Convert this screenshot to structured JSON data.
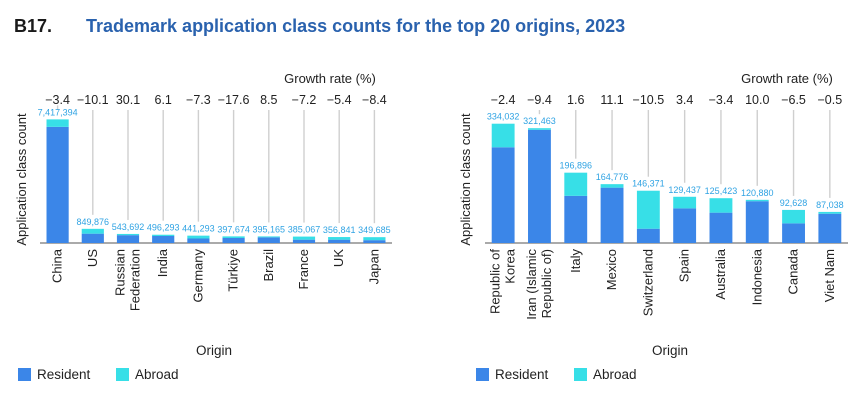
{
  "figure": {
    "id": "B17.",
    "title": "Trademark application class counts for the top 20 origins, 2023"
  },
  "colors": {
    "resident": "#3b86e8",
    "abroad": "#37dfe7",
    "gridline": "#cfcfcf",
    "axis": "#555555"
  },
  "chart_data": [
    {
      "type": "bar",
      "stacked": true,
      "title": "",
      "xlabel": "Origin",
      "ylabel": "Application class count",
      "growth_label": "Growth rate (%)",
      "categories": [
        "China",
        "US",
        "Russian Federation",
        "India",
        "Germany",
        "Türkiye",
        "Brazil",
        "France",
        "UK",
        "Japan"
      ],
      "category_lines": [
        [
          "China"
        ],
        [
          "US"
        ],
        [
          "Russian",
          "Federation"
        ],
        [
          "India"
        ],
        [
          "Germany"
        ],
        [
          "Türkiye"
        ],
        [
          "Brazil"
        ],
        [
          "France"
        ],
        [
          "UK"
        ],
        [
          "Japan"
        ]
      ],
      "growth_rate": [
        "−3.4",
        "−10.1",
        "30.1",
        "6.1",
        "−7.3",
        "−17.6",
        "8.5",
        "−7.2",
        "−5.4",
        "−8.4"
      ],
      "totals": [
        7417394,
        849876,
        543692,
        496293,
        441293,
        397674,
        395165,
        385067,
        356841,
        349685
      ],
      "total_labels": [
        "7,417,394",
        "849,876",
        "543,692",
        "496,293",
        "441,293",
        "397,674",
        "395,165",
        "385,067",
        "356,841",
        "349,685"
      ],
      "series": [
        {
          "name": "Resident",
          "values": [
            6970000,
            560000,
            470000,
            420000,
            270000,
            300000,
            340000,
            200000,
            200000,
            170000
          ]
        },
        {
          "name": "Abroad",
          "values": [
            447394,
            289876,
            73692,
            76293,
            171293,
            97674,
            55165,
            185067,
            156841,
            179685
          ]
        }
      ],
      "ylim": [
        0,
        7500000
      ],
      "legend": [
        "Resident",
        "Abroad"
      ],
      "legend_position": "bottom-left"
    },
    {
      "type": "bar",
      "stacked": true,
      "title": "",
      "xlabel": "Origin",
      "ylabel": "Application class count",
      "growth_label": "Growth rate (%)",
      "categories": [
        "Republic of Korea",
        "Iran (Islamic Republic of)",
        "Italy",
        "Mexico",
        "Switzerland",
        "Spain",
        "Australia",
        "Indonesia",
        "Canada",
        "Viet Nam"
      ],
      "category_lines": [
        [
          "Republic of",
          "Korea"
        ],
        [
          "Iran (Islamic",
          "Republic of)"
        ],
        [
          "Italy"
        ],
        [
          "Mexico"
        ],
        [
          "Switzerland"
        ],
        [
          "Spain"
        ],
        [
          "Australia"
        ],
        [
          "Indonesia"
        ],
        [
          "Canada"
        ],
        [
          "Viet Nam"
        ]
      ],
      "growth_rate": [
        "−2.4",
        "−9.4",
        "1.6",
        "11.1",
        "−10.5",
        "3.4",
        "−3.4",
        "10.0",
        "−6.5",
        "−0.5"
      ],
      "totals": [
        334032,
        321463,
        196896,
        164776,
        146371,
        129437,
        125423,
        120880,
        92628,
        87038
      ],
      "total_labels": [
        "334,032",
        "321,463",
        "196,896",
        "164,776",
        "146,371",
        "129,437",
        "125,423",
        "120,880",
        "92,628",
        "87,038"
      ],
      "series": [
        {
          "name": "Resident",
          "values": [
            268000,
            317000,
            132000,
            155000,
            40000,
            97000,
            85000,
            117000,
            55000,
            82000
          ]
        },
        {
          "name": "Abroad",
          "values": [
            66032,
            4463,
            64896,
            9776,
            106371,
            32437,
            40423,
            3880,
            37628,
            5038
          ]
        }
      ],
      "ylim": [
        0,
        350000
      ],
      "legend": [
        "Resident",
        "Abroad"
      ],
      "legend_position": "bottom-left"
    }
  ]
}
